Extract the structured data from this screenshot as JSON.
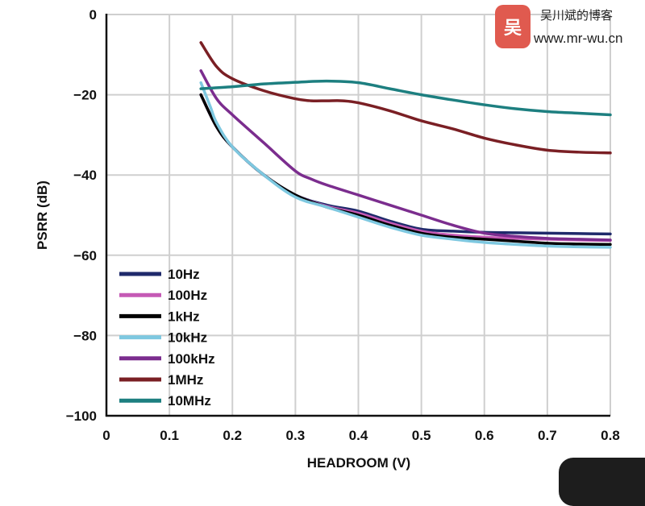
{
  "chart_data": {
    "type": "line",
    "xlabel": "HEADROOM (V)",
    "ylabel": "PSRR (dB)",
    "xlim": [
      0,
      0.8
    ],
    "ylim": [
      -100,
      0
    ],
    "xticks": [
      0,
      0.1,
      0.2,
      0.3,
      0.4,
      0.5,
      0.6,
      0.7,
      0.8
    ],
    "xtick_labels": [
      "0",
      "0.1",
      "0.2",
      "0.3",
      "0.4",
      "0.5",
      "0.6",
      "0.7",
      "0.8"
    ],
    "yticks": [
      0,
      -20,
      -40,
      -60,
      -80,
      -100
    ],
    "ytick_labels": [
      "0",
      "−20",
      "−40",
      "−60",
      "−80",
      "−100"
    ],
    "grid": true,
    "legend_position": "bottom-left",
    "series": [
      {
        "name": "10Hz",
        "color": "#1f2a6b",
        "x": [
          0.15,
          0.175,
          0.2,
          0.25,
          0.3,
          0.35,
          0.4,
          0.45,
          0.5,
          0.55,
          0.6,
          0.65,
          0.7,
          0.75,
          0.8
        ],
        "y": [
          -20,
          -28,
          -33,
          -40,
          -45,
          -47.5,
          -49,
          -51.5,
          -53.5,
          -54,
          -54.3,
          -54.4,
          -54.5,
          -54.6,
          -54.7
        ]
      },
      {
        "name": "100Hz",
        "color": "#c55ab5",
        "x": [
          0.15,
          0.175,
          0.2,
          0.25,
          0.3,
          0.35,
          0.4,
          0.45,
          0.5,
          0.55,
          0.6,
          0.65,
          0.7,
          0.75,
          0.8
        ],
        "y": [
          -20,
          -28,
          -33,
          -40,
          -45,
          -47.8,
          -49.5,
          -52,
          -54,
          -55,
          -55.5,
          -55.8,
          -56,
          -56.2,
          -56.3
        ]
      },
      {
        "name": "1kHz",
        "color": "#000000",
        "x": [
          0.15,
          0.175,
          0.2,
          0.25,
          0.3,
          0.35,
          0.4,
          0.45,
          0.5,
          0.55,
          0.6,
          0.65,
          0.7,
          0.75,
          0.8
        ],
        "y": [
          -20,
          -28,
          -33,
          -40,
          -45,
          -48,
          -50,
          -52.5,
          -54.5,
          -55.5,
          -56,
          -56.5,
          -57,
          -57.2,
          -57.3
        ]
      },
      {
        "name": "10kHz",
        "color": "#7ec8e0",
        "x": [
          0.15,
          0.165,
          0.175,
          0.2,
          0.25,
          0.3,
          0.35,
          0.4,
          0.45,
          0.5,
          0.55,
          0.6,
          0.65,
          0.7,
          0.75,
          0.8
        ],
        "y": [
          -17,
          -23,
          -27,
          -33,
          -40,
          -45.5,
          -48,
          -50.5,
          -53,
          -55,
          -56,
          -56.8,
          -57.3,
          -57.7,
          -57.9,
          -58
        ]
      },
      {
        "name": "100kHz",
        "color": "#7b2d8e",
        "x": [
          0.15,
          0.175,
          0.2,
          0.25,
          0.3,
          0.325,
          0.35,
          0.4,
          0.45,
          0.5,
          0.55,
          0.6,
          0.65,
          0.7,
          0.75,
          0.8
        ],
        "y": [
          -14,
          -21,
          -25,
          -32,
          -39,
          -41,
          -42.5,
          -45,
          -47.5,
          -50,
          -52.5,
          -54.5,
          -55.3,
          -55.8,
          -56,
          -56.2
        ]
      },
      {
        "name": "1MHz",
        "color": "#7a1f24",
        "x": [
          0.15,
          0.175,
          0.2,
          0.25,
          0.3,
          0.325,
          0.35,
          0.375,
          0.4,
          0.45,
          0.5,
          0.55,
          0.6,
          0.65,
          0.7,
          0.75,
          0.8
        ],
        "y": [
          -7,
          -13,
          -16,
          -19,
          -21,
          -21.5,
          -21.5,
          -21.5,
          -22,
          -24,
          -26.5,
          -28.5,
          -30.8,
          -32.5,
          -33.8,
          -34.3,
          -34.5
        ]
      },
      {
        "name": "10MHz",
        "color": "#1d7f80",
        "x": [
          0.15,
          0.2,
          0.25,
          0.3,
          0.35,
          0.4,
          0.45,
          0.5,
          0.55,
          0.6,
          0.65,
          0.7,
          0.75,
          0.8
        ],
        "y": [
          -18.5,
          -18,
          -17.3,
          -16.9,
          -16.6,
          -17,
          -18.5,
          -20,
          -21.3,
          -22.5,
          -23.5,
          -24.2,
          -24.6,
          -25
        ]
      }
    ]
  },
  "watermark": {
    "logo_text": "吴",
    "title": "吴川斌的博客",
    "url": "www.mr-wu.cn"
  }
}
